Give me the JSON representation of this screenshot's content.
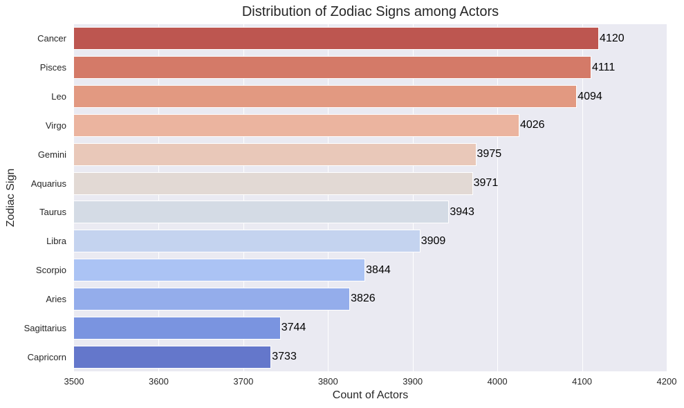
{
  "chart_data": {
    "type": "bar",
    "orientation": "horizontal",
    "title": "Distribution of Zodiac Signs among Actors",
    "xlabel": "Count of Actors",
    "ylabel": "Zodiac Sign",
    "xlim": [
      3500,
      4200
    ],
    "xticks": [
      "3500",
      "3600",
      "3700",
      "3800",
      "3900",
      "4000",
      "4100",
      "4200"
    ],
    "grid": true,
    "legend": null,
    "categories": [
      "Cancer",
      "Pisces",
      "Leo",
      "Virgo",
      "Gemini",
      "Aquarius",
      "Taurus",
      "Libra",
      "Scorpio",
      "Aries",
      "Sagittarius",
      "Capricorn"
    ],
    "values": [
      4120,
      4111,
      4094,
      4026,
      3975,
      3971,
      3943,
      3909,
      3844,
      3826,
      3744,
      3733
    ],
    "value_labels": [
      "4120",
      "4111",
      "4094",
      "4026",
      "3975",
      "3971",
      "3943",
      "3909",
      "3844",
      "3826",
      "3744",
      "3733"
    ],
    "colors": [
      "#bd5650",
      "#d47a68",
      "#e29981",
      "#ebb49f",
      "#e9c8b9",
      "#e2d9d4",
      "#d4dbe5",
      "#c4d3ef",
      "#abc3f4",
      "#94adeb",
      "#7a94e0",
      "#6477cb"
    ]
  }
}
